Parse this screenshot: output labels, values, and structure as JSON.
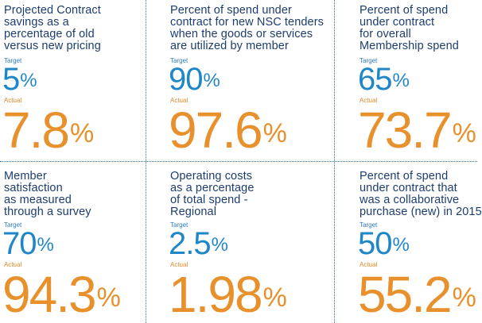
{
  "metrics": [
    {
      "description": "Projected Contract\nsavings as a\npercentage of old\nversus new pricing",
      "target_label": "Target",
      "target_value": "5",
      "target_suffix": "%",
      "actual_label": "Actual",
      "actual_value": "7.8",
      "actual_suffix": "%"
    },
    {
      "description": "Percent of spend under\ncontract for new NSC tenders\nwhen the goods or services\nare utilized by member",
      "target_label": "Target",
      "target_value": "90",
      "target_suffix": "%",
      "actual_label": "Actual",
      "actual_value": "97.6",
      "actual_suffix": "%"
    },
    {
      "description": "Percent of spend\nunder contract\nfor overall\nMembership spend",
      "target_label": "Target",
      "target_value": "65",
      "target_suffix": "%",
      "actual_label": "Actual",
      "actual_value": "73.7",
      "actual_suffix": "%"
    },
    {
      "description": "Member\nsatisfaction\nas measured\nthrough a survey",
      "target_label": "Target",
      "target_value": "70",
      "target_suffix": "%",
      "actual_label": "Actual",
      "actual_value": "94.3",
      "actual_suffix": "%"
    },
    {
      "description": "Operating costs\nas a percentage\nof total spend -\nRegional",
      "target_label": "Target",
      "target_value": "2.5",
      "target_suffix": "%",
      "actual_label": "Actual",
      "actual_value": "1.98",
      "actual_suffix": "%"
    },
    {
      "description": "Percent of spend\nunder contract that\nwas a collaborative\npurchase (new) in 2015",
      "target_label": "Target",
      "target_value": "50",
      "target_suffix": "%",
      "actual_label": "Actual",
      "actual_value": "55.2",
      "actual_suffix": "%"
    }
  ],
  "colors": {
    "description_text": "#1d3d6e",
    "target_value": "#1f86c8",
    "actual_value": "#e8902b",
    "divider": "#2f6fa8"
  }
}
